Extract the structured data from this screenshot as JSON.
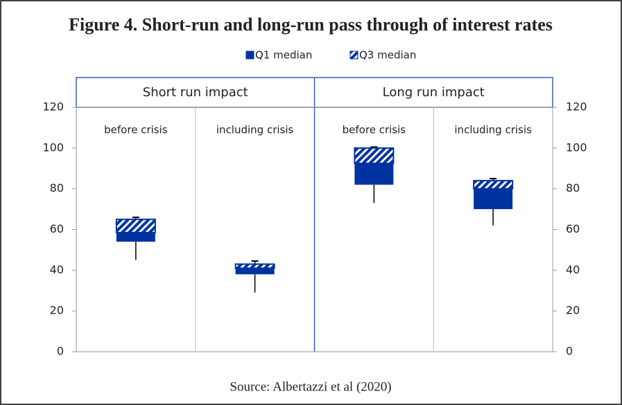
{
  "chart_data": {
    "type": "box",
    "title": "Figure 4. Short-run and long-run pass through of interest rates",
    "source": "Source: Albertazzi et al (2020)",
    "legend": [
      {
        "name": "Q1 median",
        "color": "#0033a0",
        "pattern": "solid"
      },
      {
        "name": "Q3 median",
        "color": "#0033a0",
        "pattern": "hatch"
      }
    ],
    "groups": [
      "Short run impact",
      "Long run impact"
    ],
    "categories": [
      "before crisis",
      "including crisis",
      "before crisis",
      "including crisis"
    ],
    "low": [
      45,
      29,
      73,
      62
    ],
    "q1": [
      54,
      38,
      82,
      70
    ],
    "median": [
      58.5,
      41,
      92.5,
      80
    ],
    "q3": [
      65,
      43,
      100,
      84
    ],
    "high": [
      66,
      44.5,
      100.5,
      85
    ],
    "ylim": [
      0,
      120
    ],
    "yticks": [
      0,
      20,
      40,
      60,
      80,
      100,
      120
    ],
    "y2lim": [
      0,
      120
    ],
    "y2ticks": [
      0,
      20,
      40,
      60,
      80,
      100,
      120
    ]
  }
}
